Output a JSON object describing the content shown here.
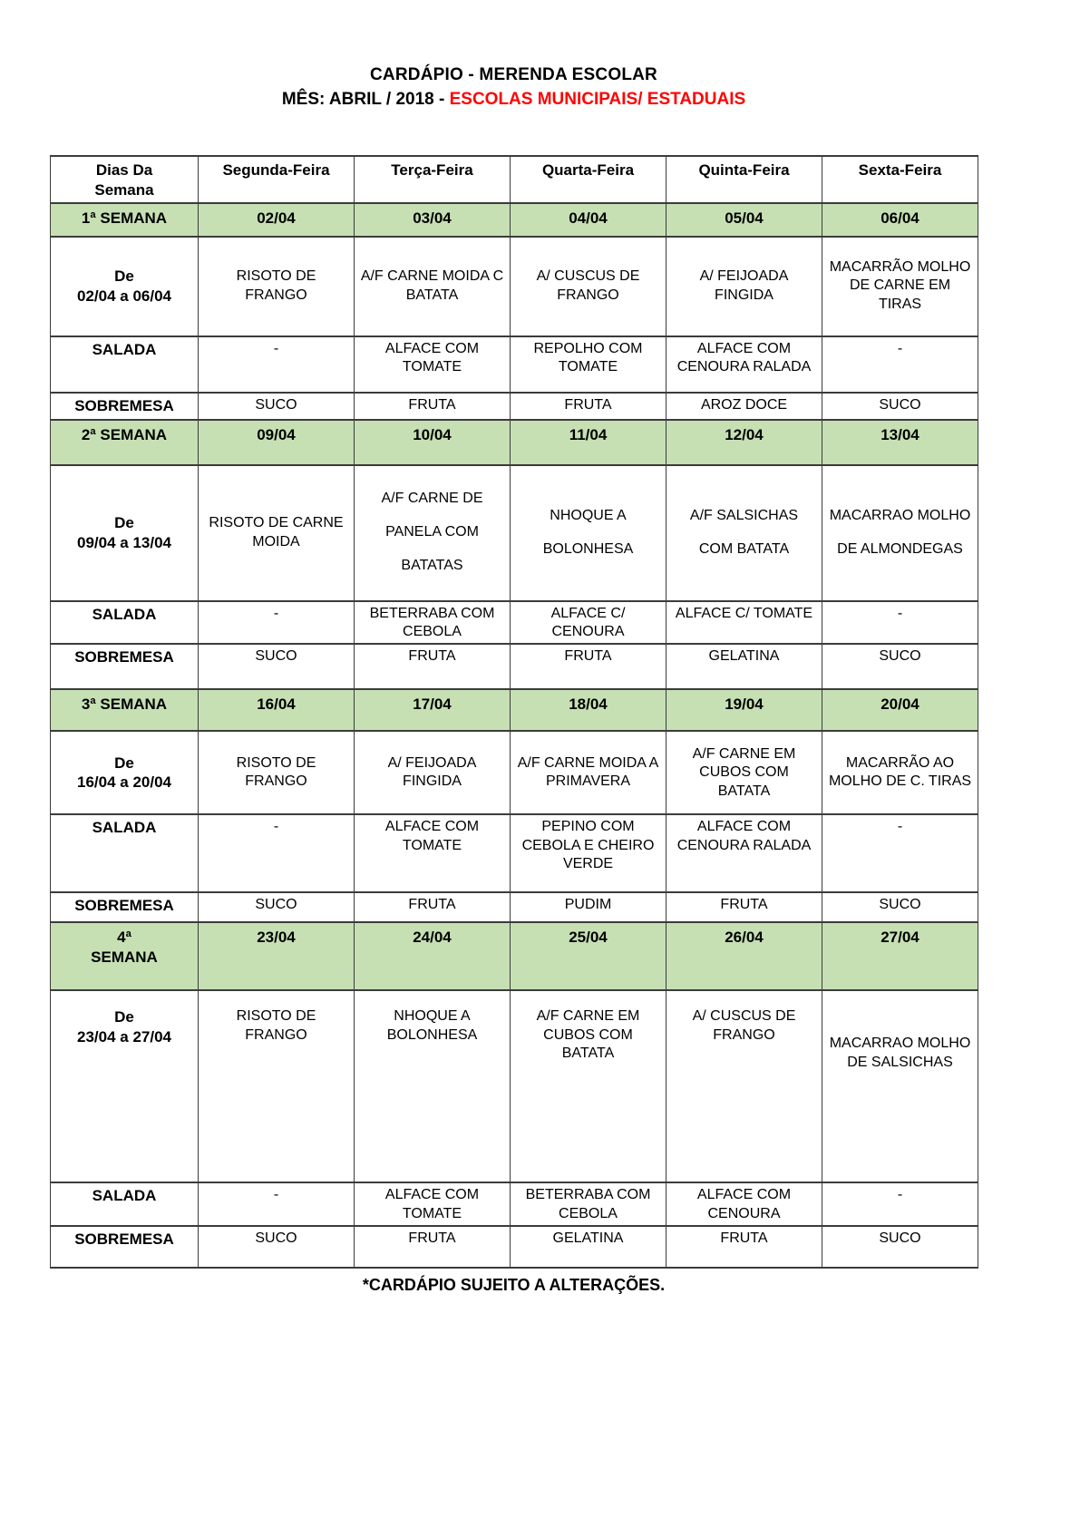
{
  "title": {
    "line1": "CARDÁPIO - MERENDA ESCOLAR",
    "line2_black": "MÊS: ABRIL / 2018 - ",
    "line2_red": "ESCOLAS MUNICIPAIS/ ESTADUAIS"
  },
  "colors": {
    "week_row_bg": "#c6e0b4",
    "accent_red": "#ff0000",
    "table_border": "#3b3b3b"
  },
  "table": {
    "header": {
      "col0": "Dias Da\nSemana",
      "col1": "Segunda-Feira",
      "col2": "Terça-Feira",
      "col3": "Quarta-Feira",
      "col4": "Quinta-Feira",
      "col5": "Sexta-Feira"
    },
    "weeks": [
      {
        "week_label": "1ª SEMANA",
        "dates": [
          "02/04",
          "03/04",
          "04/04",
          "05/04",
          "06/04"
        ],
        "range": "De\n02/04 a 06/04",
        "dishes": [
          "RISOTO DE FRANGO",
          "A/F CARNE MOIDA C BATATA",
          "A/ CUSCUS DE FRANGO",
          "A/ FEIJOADA FINGIDA",
          "MACARRÃO MOLHO DE CARNE EM TIRAS"
        ],
        "salada_label": "SALADA",
        "salada": [
          "-",
          "ALFACE COM TOMATE",
          "REPOLHO COM TOMATE",
          "ALFACE COM CENOURA RALADA",
          "-"
        ],
        "sobremesa_label": "SOBREMESA",
        "sobremesa": [
          "SUCO",
          "FRUTA",
          "FRUTA",
          "AROZ DOCE",
          "SUCO"
        ]
      },
      {
        "week_label": "2ª SEMANA",
        "dates": [
          "09/04",
          "10/04",
          "11/04",
          "12/04",
          "13/04"
        ],
        "range": "De\n09/04 a 13/04",
        "dishes": [
          "RISOTO DE CARNE MOIDA",
          "A/F CARNE DE PANELA COM BATATAS",
          "NHOQUE A BOLONHESA",
          "A/F SALSICHAS COM BATATA",
          "MACARRAO MOLHO DE ALMONDEGAS"
        ],
        "salada_label": "SALADA",
        "salada": [
          "-",
          "BETERRABA COM CEBOLA",
          "ALFACE C/ CENOURA",
          "ALFACE C/ TOMATE",
          "-"
        ],
        "sobremesa_label": "SOBREMESA",
        "sobremesa": [
          "SUCO",
          "FRUTA",
          "FRUTA",
          "GELATINA",
          "SUCO"
        ]
      },
      {
        "week_label": "3ª SEMANA",
        "dates": [
          "16/04",
          "17/04",
          "18/04",
          "19/04",
          "20/04"
        ],
        "range": "De\n16/04 a 20/04",
        "dishes": [
          "RISOTO DE FRANGO",
          "A/ FEIJOADA FINGIDA",
          "A/F CARNE MOIDA A PRIMAVERA",
          "A/F CARNE EM CUBOS COM BATATA",
          "MACARRÃO AO MOLHO DE C. TIRAS"
        ],
        "salada_label": "SALADA",
        "salada": [
          "-",
          "ALFACE COM TOMATE",
          "PEPINO COM CEBOLA E CHEIRO VERDE",
          "ALFACE COM CENOURA RALADA",
          "-"
        ],
        "sobremesa_label": "SOBREMESA",
        "sobremesa": [
          "SUCO",
          "FRUTA",
          "PUDIM",
          "FRUTA",
          "SUCO"
        ]
      },
      {
        "week_label": "4ª\nSEMANA",
        "dates": [
          "23/04",
          "24/04",
          "25/04",
          "26/04",
          "27/04"
        ],
        "range": "De\n23/04 a 27/04",
        "dishes": [
          "RISOTO DE FRANGO",
          "NHOQUE A BOLONHESA",
          "A/F CARNE EM CUBOS COM BATATA",
          "A/ CUSCUS DE FRANGO",
          "MACARRAO MOLHO DE SALSICHAS"
        ],
        "salada_label": "SALADA",
        "salada": [
          "-",
          "ALFACE COM TOMATE",
          "BETERRABA COM CEBOLA",
          "ALFACE COM CENOURA",
          "-"
        ],
        "sobremesa_label": "SOBREMESA",
        "sobremesa": [
          "SUCO",
          "FRUTA",
          "GELATINA",
          "FRUTA",
          "SUCO"
        ]
      }
    ]
  },
  "footer": "*CARDÁPIO SUJEITO A ALTERAÇÕES."
}
